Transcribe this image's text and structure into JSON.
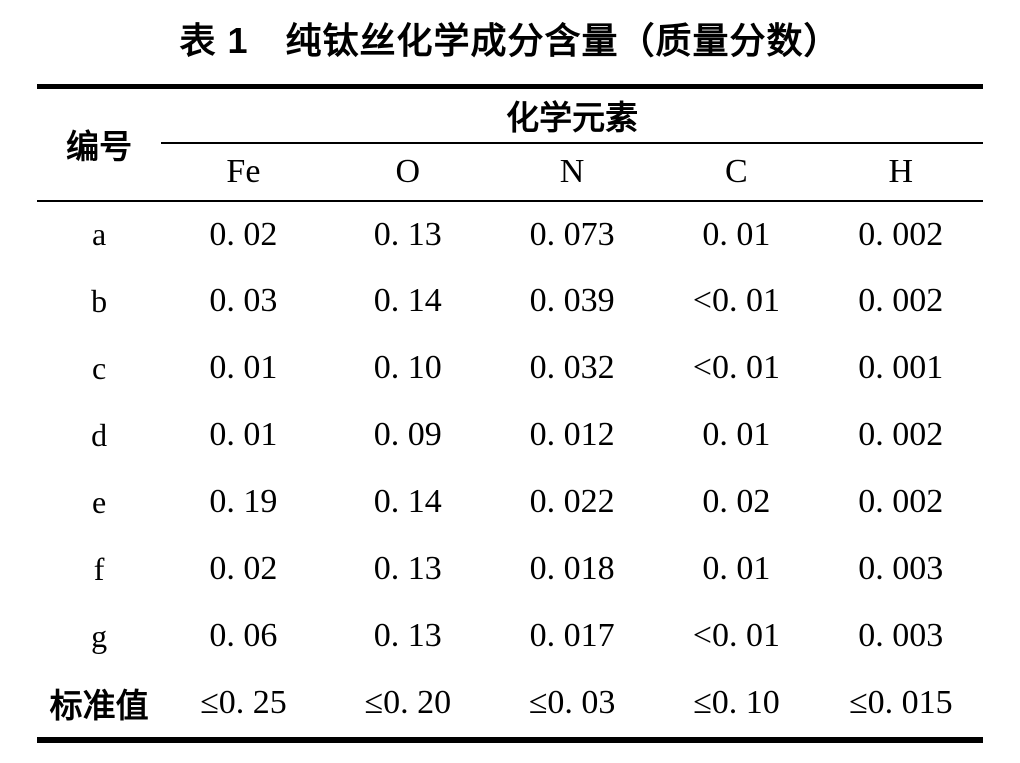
{
  "title": "表 1　纯钛丝化学成分含量（质量分数）",
  "table": {
    "corner_header": "编号",
    "group_header": "化学元素",
    "columns": [
      "Fe",
      "O",
      "N",
      "C",
      "H"
    ],
    "rows": [
      {
        "label": "a",
        "values": [
          "0. 02",
          "0. 13",
          "0. 073",
          "0. 01",
          "0. 002"
        ]
      },
      {
        "label": "b",
        "values": [
          "0. 03",
          "0. 14",
          "0. 039",
          "<0. 01",
          "0. 002"
        ]
      },
      {
        "label": "c",
        "values": [
          "0. 01",
          "0. 10",
          "0. 032",
          "<0. 01",
          "0. 001"
        ]
      },
      {
        "label": "d",
        "values": [
          "0. 01",
          "0. 09",
          "0. 012",
          "0. 01",
          "0. 002"
        ]
      },
      {
        "label": "e",
        "values": [
          "0. 19",
          "0. 14",
          "0. 022",
          "0. 02",
          "0. 002"
        ]
      },
      {
        "label": "f",
        "values": [
          "0. 02",
          "0. 13",
          "0. 018",
          "0. 01",
          "0. 003"
        ]
      },
      {
        "label": "g",
        "values": [
          "0. 06",
          "0. 13",
          "0. 017",
          "<0. 01",
          "0. 003"
        ]
      },
      {
        "label": "标准值",
        "values": [
          "≤0. 25",
          "≤0. 20",
          "≤0. 03",
          "≤0. 10",
          "≤0. 015"
        ]
      }
    ],
    "colors": {
      "text": "#000000",
      "background": "#ffffff",
      "rule": "#000000"
    }
  }
}
